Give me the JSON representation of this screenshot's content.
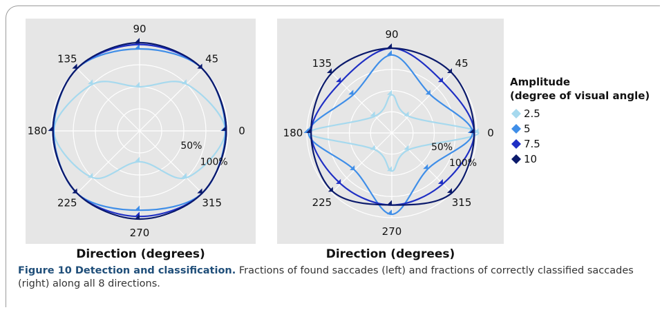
{
  "chart_data": [
    {
      "type": "radar",
      "xlabel": "Direction (degrees)",
      "angles": [
        0,
        45,
        90,
        135,
        180,
        225,
        270,
        315
      ],
      "radial_labels": [
        "50%",
        "100%"
      ],
      "rlim": [
        0,
        100
      ],
      "series": [
        {
          "name": "2.5",
          "values": [
            97,
            75,
            50,
            75,
            97,
            75,
            35,
            75
          ]
        },
        {
          "name": "5",
          "values": [
            97,
            100,
            93,
            100,
            97,
            100,
            90,
            100
          ]
        },
        {
          "name": "7.5",
          "values": [
            98,
            100,
            98,
            100,
            98,
            100,
            97,
            100
          ]
        },
        {
          "name": "10",
          "values": [
            98,
            100,
            100,
            100,
            98,
            100,
            100,
            100
          ]
        }
      ]
    },
    {
      "type": "radar",
      "xlabel": "Direction (degrees)",
      "angles": [
        0,
        45,
        90,
        135,
        180,
        225,
        270,
        315
      ],
      "radial_labels": [
        "50%",
        "100%"
      ],
      "rlim": [
        0,
        100
      ],
      "series": [
        {
          "name": "2.5",
          "values": [
            102,
            28,
            45,
            28,
            98,
            28,
            45,
            28
          ]
        },
        {
          "name": "5",
          "values": [
            95,
            64,
            92,
            64,
            98,
            62,
            96,
            60
          ]
        },
        {
          "name": "7.5",
          "values": [
            97,
            85,
            100,
            85,
            95,
            85,
            85,
            85
          ]
        },
        {
          "name": "10",
          "values": [
            97,
            100,
            100,
            100,
            95,
            98,
            85,
            100
          ]
        }
      ]
    }
  ],
  "legend": {
    "title_line1": "Amplitude",
    "title_line2": "(degree of visual angle)",
    "placement": "right"
  },
  "colors": {
    "2.5": "#a6d9ee",
    "5": "#3f8ee8",
    "7.5": "#1f2fc4",
    "10": "#0b1a6b",
    "panel_bg": "#e6e6e6",
    "grid": "#ffffff"
  },
  "caption": {
    "bold": "Figure 10 Detection and classification.",
    "text": " Fractions of found saccades (left) and fractions of correctly classified saccades (right) along all 8 directions."
  }
}
